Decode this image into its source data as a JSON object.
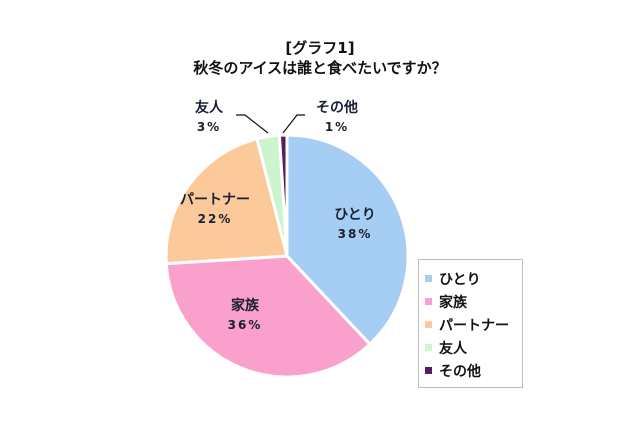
{
  "chart_data": {
    "type": "pie",
    "title": "[グラフ1]",
    "subtitle": "秋冬のアイスは誰と食べたいですか？",
    "categories": [
      "ひとり",
      "家族",
      "パートナー",
      "友人",
      "その他"
    ],
    "values": [
      38,
      36,
      22,
      3,
      1
    ],
    "unit": "%",
    "colors": [
      "#a6cdf4",
      "#f9a0cd",
      "#fcc99a",
      "#ccf5cf",
      "#5b1a5b"
    ],
    "data_labels": [
      "38%",
      "36%",
      "22%",
      "3%",
      "1%"
    ],
    "legend_position": "right-bottom",
    "start_angle_deg": 0,
    "direction": "clockwise"
  },
  "title": {
    "line1": "[グラフ1]",
    "line2": "秋冬のアイスは誰と食べたいですか？"
  },
  "labels": [
    {
      "name": "ひとり",
      "pct": "38%"
    },
    {
      "name": "家族",
      "pct": "36%"
    },
    {
      "name": "パートナー",
      "pct": "22%"
    },
    {
      "name": "友人",
      "pct": "3%"
    },
    {
      "name": "その他",
      "pct": "1%"
    }
  ],
  "legend": {
    "items": [
      {
        "label": "ひとり",
        "color": "#a6cdf4"
      },
      {
        "label": "家族",
        "color": "#f9a0cd"
      },
      {
        "label": "パートナー",
        "color": "#fcc99a"
      },
      {
        "label": "友人",
        "color": "#ccf5cf"
      },
      {
        "label": "その他",
        "color": "#5b1a5b"
      }
    ]
  }
}
